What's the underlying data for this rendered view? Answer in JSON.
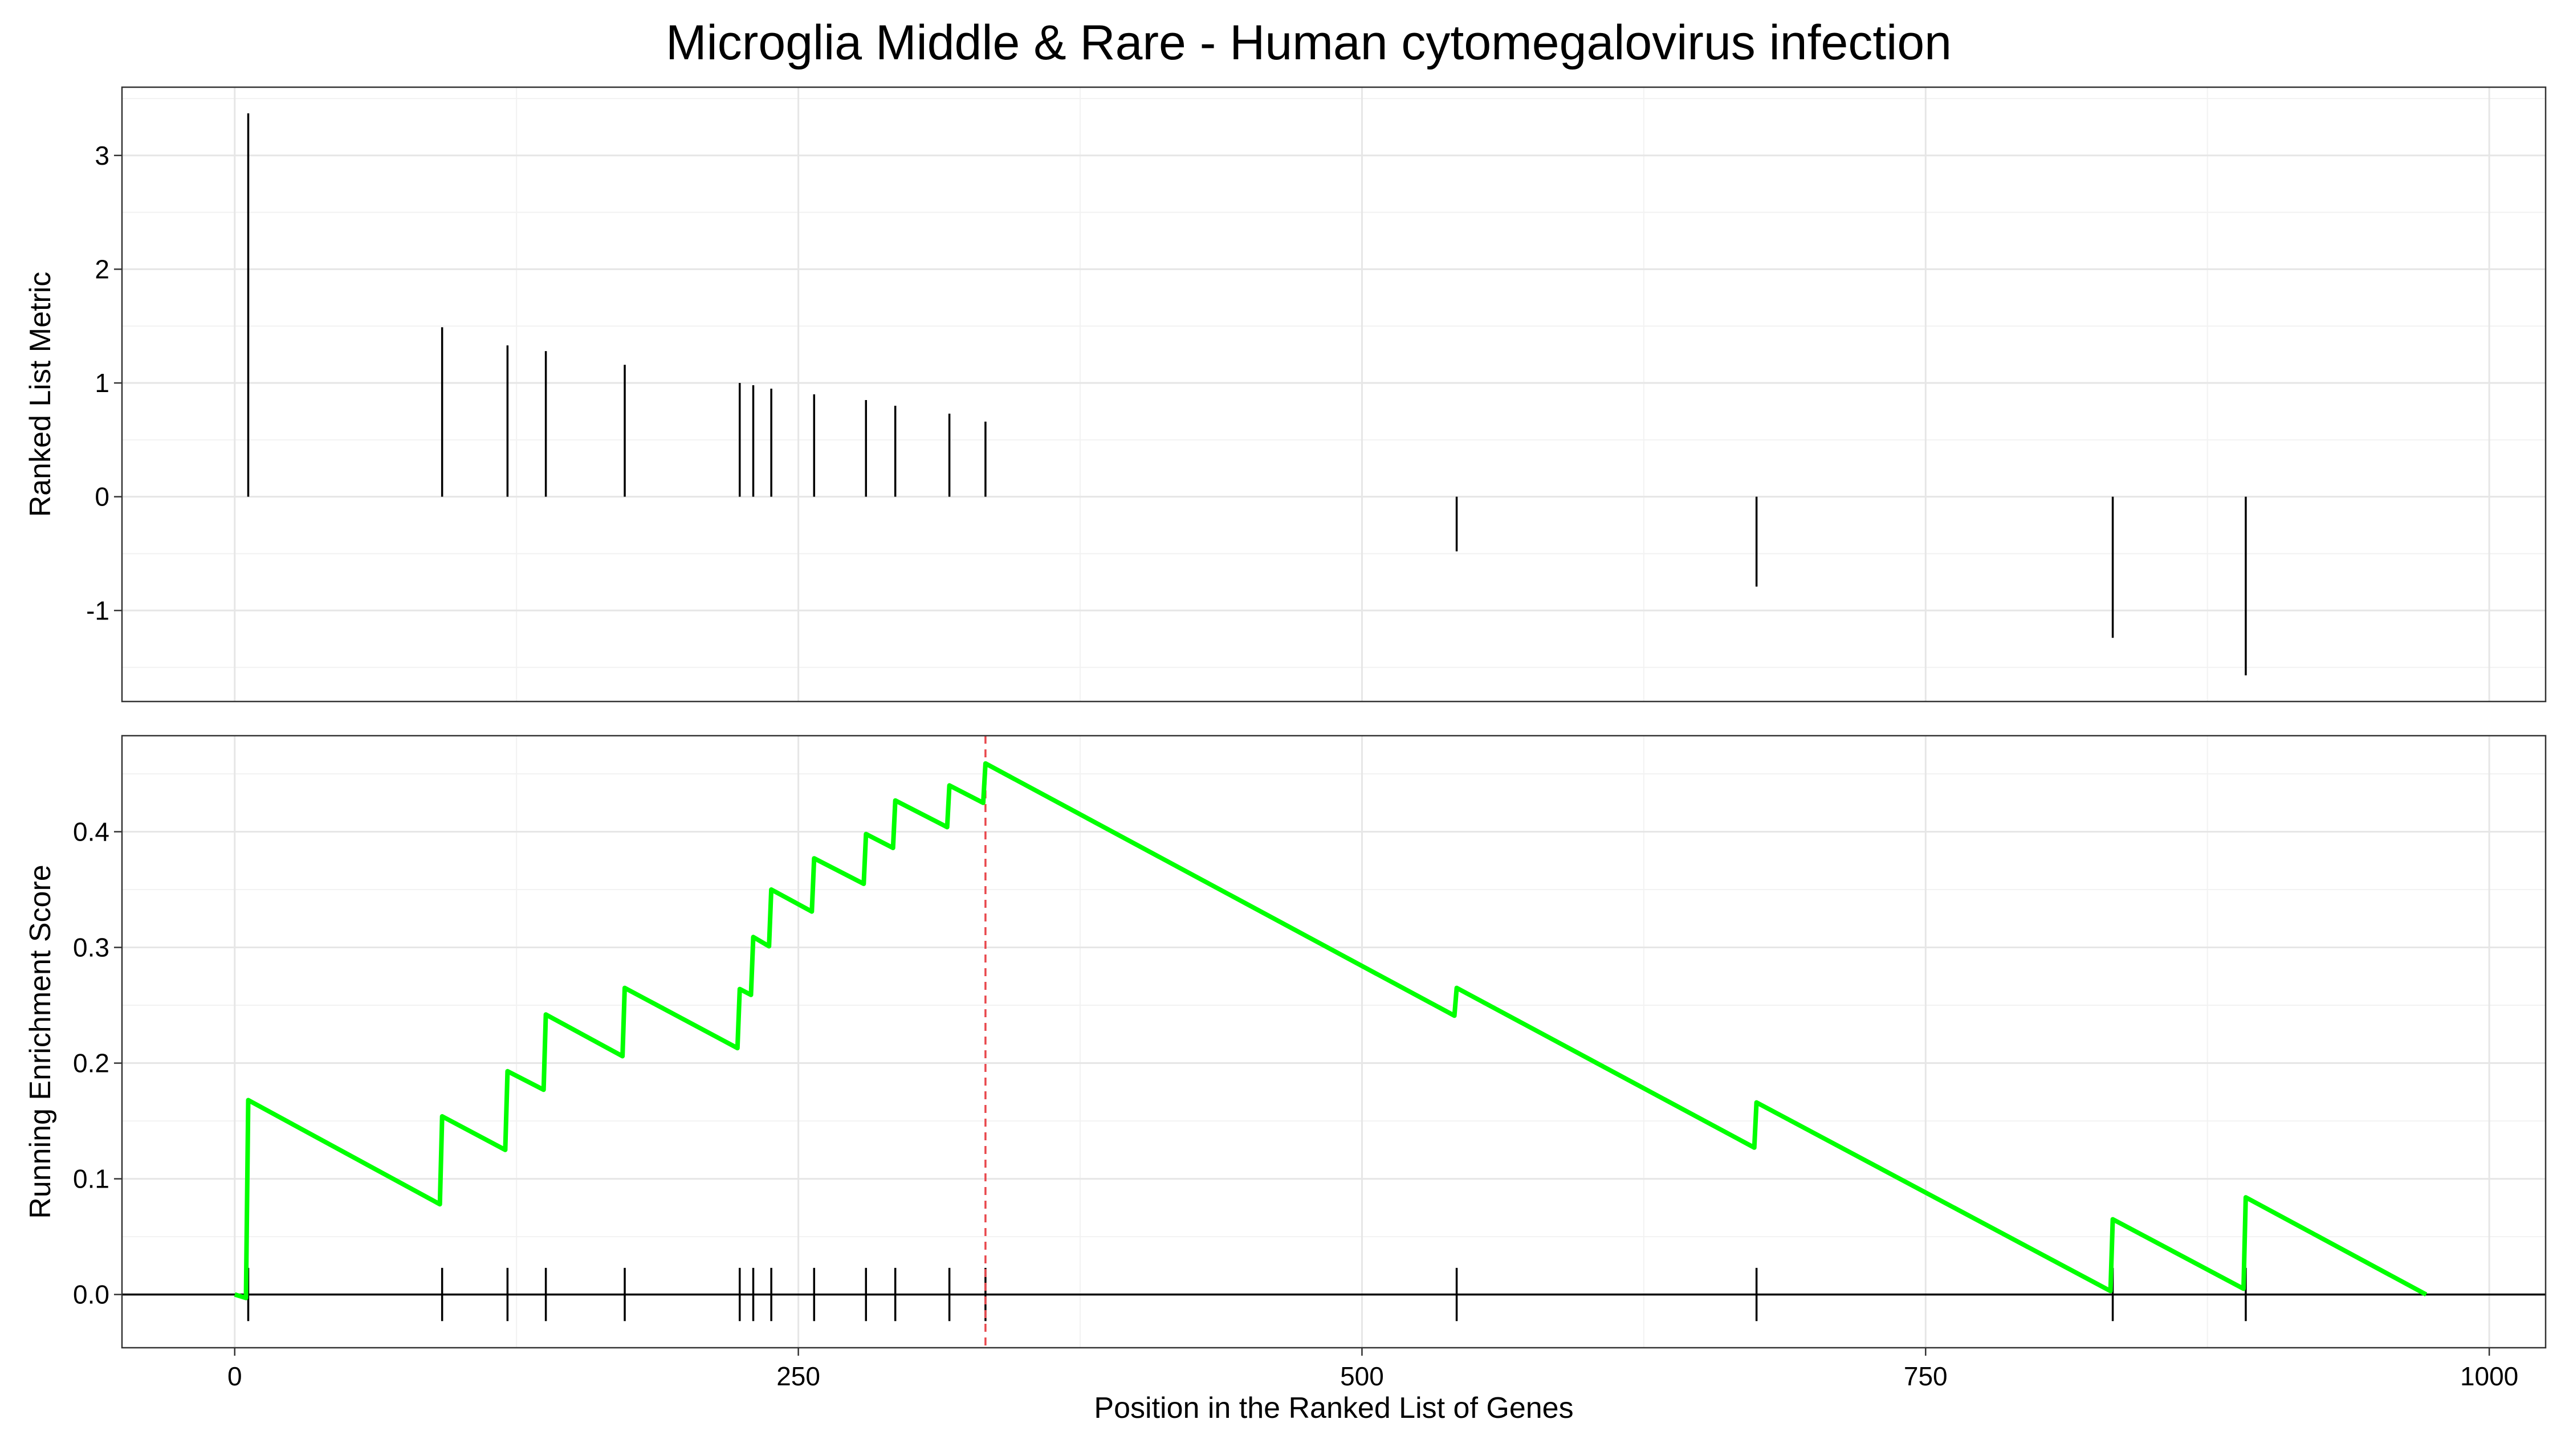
{
  "chart_data": {
    "type": "line",
    "title": "Microglia Middle & Rare - Human cytomegalovirus infection",
    "xlabel": "Position in the Ranked List of Genes",
    "xlim": [
      -50,
      1025
    ],
    "x_ticks": [
      0,
      250,
      500,
      750,
      1000
    ],
    "x_tick_labels": [
      "0",
      "250",
      "500",
      "750",
      "1000"
    ],
    "grid": true,
    "colors": {
      "running_score": "#00FF00",
      "peak_line": "#E8474C",
      "marks": "#000000"
    },
    "panels": [
      {
        "name": "ranked-list-metric",
        "ylabel": "Ranked List Metric",
        "ylim": [
          -1.8,
          3.6
        ],
        "y_ticks": [
          -1,
          0,
          1,
          2,
          3
        ],
        "y_tick_labels": [
          "-1",
          "0",
          "1",
          "2",
          "3"
        ],
        "segments": [
          {
            "x": 6,
            "y": 3.37
          },
          {
            "x": 92,
            "y": 1.49
          },
          {
            "x": 121,
            "y": 1.33
          },
          {
            "x": 138,
            "y": 1.28
          },
          {
            "x": 173,
            "y": 1.16
          },
          {
            "x": 224,
            "y": 1.0
          },
          {
            "x": 230,
            "y": 0.98
          },
          {
            "x": 238,
            "y": 0.95
          },
          {
            "x": 257,
            "y": 0.9
          },
          {
            "x": 280,
            "y": 0.85
          },
          {
            "x": 293,
            "y": 0.8
          },
          {
            "x": 317,
            "y": 0.73
          },
          {
            "x": 333,
            "y": 0.66
          },
          {
            "x": 542,
            "y": -0.48
          },
          {
            "x": 675,
            "y": -0.79
          },
          {
            "x": 833,
            "y": -1.24
          },
          {
            "x": 892,
            "y": -1.57
          }
        ]
      },
      {
        "name": "running-enrichment-score",
        "ylabel": "Running Enrichment Score",
        "ylim": [
          -0.046,
          0.483
        ],
        "y_ticks": [
          0.0,
          0.1,
          0.2,
          0.3,
          0.4
        ],
        "y_tick_labels": [
          "0.0",
          "0.1",
          "0.2",
          "0.3",
          "0.4"
        ],
        "peak_x": 333,
        "zero_line": 0,
        "running_score": [
          {
            "x": 0,
            "y": 0.0
          },
          {
            "x": 5,
            "y": -0.003
          },
          {
            "x": 6,
            "y": 0.168
          },
          {
            "x": 91,
            "y": 0.078
          },
          {
            "x": 92,
            "y": 0.154
          },
          {
            "x": 120,
            "y": 0.125
          },
          {
            "x": 121,
            "y": 0.193
          },
          {
            "x": 137,
            "y": 0.177
          },
          {
            "x": 138,
            "y": 0.242
          },
          {
            "x": 172,
            "y": 0.206
          },
          {
            "x": 173,
            "y": 0.265
          },
          {
            "x": 223,
            "y": 0.213
          },
          {
            "x": 224,
            "y": 0.264
          },
          {
            "x": 229,
            "y": 0.259
          },
          {
            "x": 230,
            "y": 0.309
          },
          {
            "x": 237,
            "y": 0.301
          },
          {
            "x": 238,
            "y": 0.35
          },
          {
            "x": 256,
            "y": 0.331
          },
          {
            "x": 257,
            "y": 0.377
          },
          {
            "x": 279,
            "y": 0.355
          },
          {
            "x": 280,
            "y": 0.398
          },
          {
            "x": 292,
            "y": 0.386
          },
          {
            "x": 293,
            "y": 0.427
          },
          {
            "x": 316,
            "y": 0.404
          },
          {
            "x": 317,
            "y": 0.44
          },
          {
            "x": 332,
            "y": 0.425
          },
          {
            "x": 333,
            "y": 0.459
          },
          {
            "x": 541,
            "y": 0.241
          },
          {
            "x": 542,
            "y": 0.265
          },
          {
            "x": 674,
            "y": 0.127
          },
          {
            "x": 675,
            "y": 0.166
          },
          {
            "x": 832,
            "y": 0.003
          },
          {
            "x": 833,
            "y": 0.065
          },
          {
            "x": 891,
            "y": 0.005
          },
          {
            "x": 892,
            "y": 0.084
          },
          {
            "x": 972,
            "y": 0.0
          }
        ],
        "hit_positions": [
          6,
          92,
          121,
          138,
          173,
          224,
          230,
          238,
          257,
          280,
          293,
          317,
          333,
          542,
          675,
          833,
          892
        ],
        "hit_mark_range": [
          -0.023,
          0.023
        ]
      }
    ]
  }
}
